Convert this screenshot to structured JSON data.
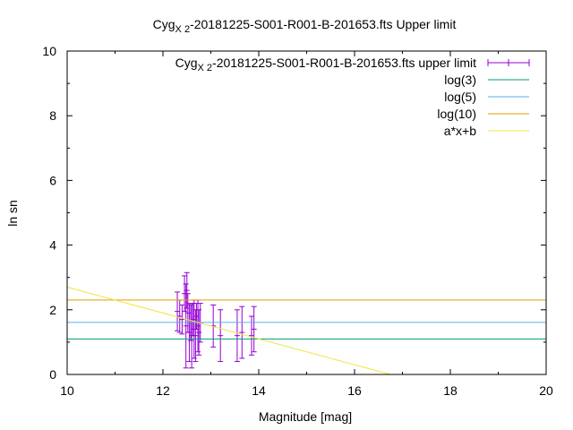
{
  "chart_data": {
    "type": "scatter",
    "title_main": "Cyg",
    "title_sub": "X 2",
    "title_rest": "-20181225-S001-R001-B-201653.fts Upper limit",
    "xlabel": "Magnitude [mag]",
    "ylabel": "ln sn",
    "xlim": [
      10,
      20
    ],
    "ylim": [
      0,
      10
    ],
    "xticks": [
      "10",
      "12",
      "14",
      "16",
      "18",
      "20"
    ],
    "yticks": [
      "0",
      "2",
      "4",
      "6",
      "8",
      "10"
    ],
    "grid": false,
    "legend_position": "top-right",
    "series": [
      {
        "name_main": "Cyg",
        "name_sub": "X 2",
        "name_rest": "-20181225-S001-R001-B-201653.fts upper limit",
        "kind": "errorbar",
        "color": "#9400d3",
        "points": [
          {
            "x": 12.3,
            "y": 1.95,
            "err": 0.6
          },
          {
            "x": 12.35,
            "y": 1.8,
            "err": 0.5
          },
          {
            "x": 12.4,
            "y": 1.7,
            "err": 0.45
          },
          {
            "x": 12.45,
            "y": 2.5,
            "err": 0.55
          },
          {
            "x": 12.48,
            "y": 1.5,
            "err": 1.3
          },
          {
            "x": 12.5,
            "y": 2.6,
            "err": 0.55
          },
          {
            "x": 12.52,
            "y": 1.9,
            "err": 0.6
          },
          {
            "x": 12.55,
            "y": 1.3,
            "err": 0.9
          },
          {
            "x": 12.58,
            "y": 1.6,
            "err": 0.55
          },
          {
            "x": 12.6,
            "y": 1.2,
            "err": 1.0
          },
          {
            "x": 12.63,
            "y": 1.7,
            "err": 0.5
          },
          {
            "x": 12.65,
            "y": 1.4,
            "err": 0.9
          },
          {
            "x": 12.68,
            "y": 1.2,
            "err": 0.8
          },
          {
            "x": 12.7,
            "y": 1.8,
            "err": 0.4
          },
          {
            "x": 12.73,
            "y": 1.5,
            "err": 0.8
          },
          {
            "x": 12.75,
            "y": 1.3,
            "err": 0.7
          },
          {
            "x": 12.78,
            "y": 1.6,
            "err": 0.6
          },
          {
            "x": 13.05,
            "y": 1.5,
            "err": 0.65
          },
          {
            "x": 13.2,
            "y": 1.2,
            "err": 0.8
          },
          {
            "x": 13.55,
            "y": 1.2,
            "err": 0.8
          },
          {
            "x": 13.65,
            "y": 1.3,
            "err": 0.8
          },
          {
            "x": 13.85,
            "y": 1.2,
            "err": 0.6
          },
          {
            "x": 13.9,
            "y": 1.4,
            "err": 0.7
          }
        ]
      },
      {
        "name": "log(3)",
        "kind": "hline",
        "value": 1.0986,
        "color": "#009e73"
      },
      {
        "name": "log(5)",
        "kind": "hline",
        "value": 1.6094,
        "color": "#56b4e9"
      },
      {
        "name": "log(10)",
        "kind": "hline",
        "value": 2.3026,
        "color": "#e69f00"
      },
      {
        "name": "a*x+b",
        "kind": "fit",
        "slope": -0.4,
        "intercept": 6.7,
        "color": "#f0e442"
      }
    ]
  }
}
